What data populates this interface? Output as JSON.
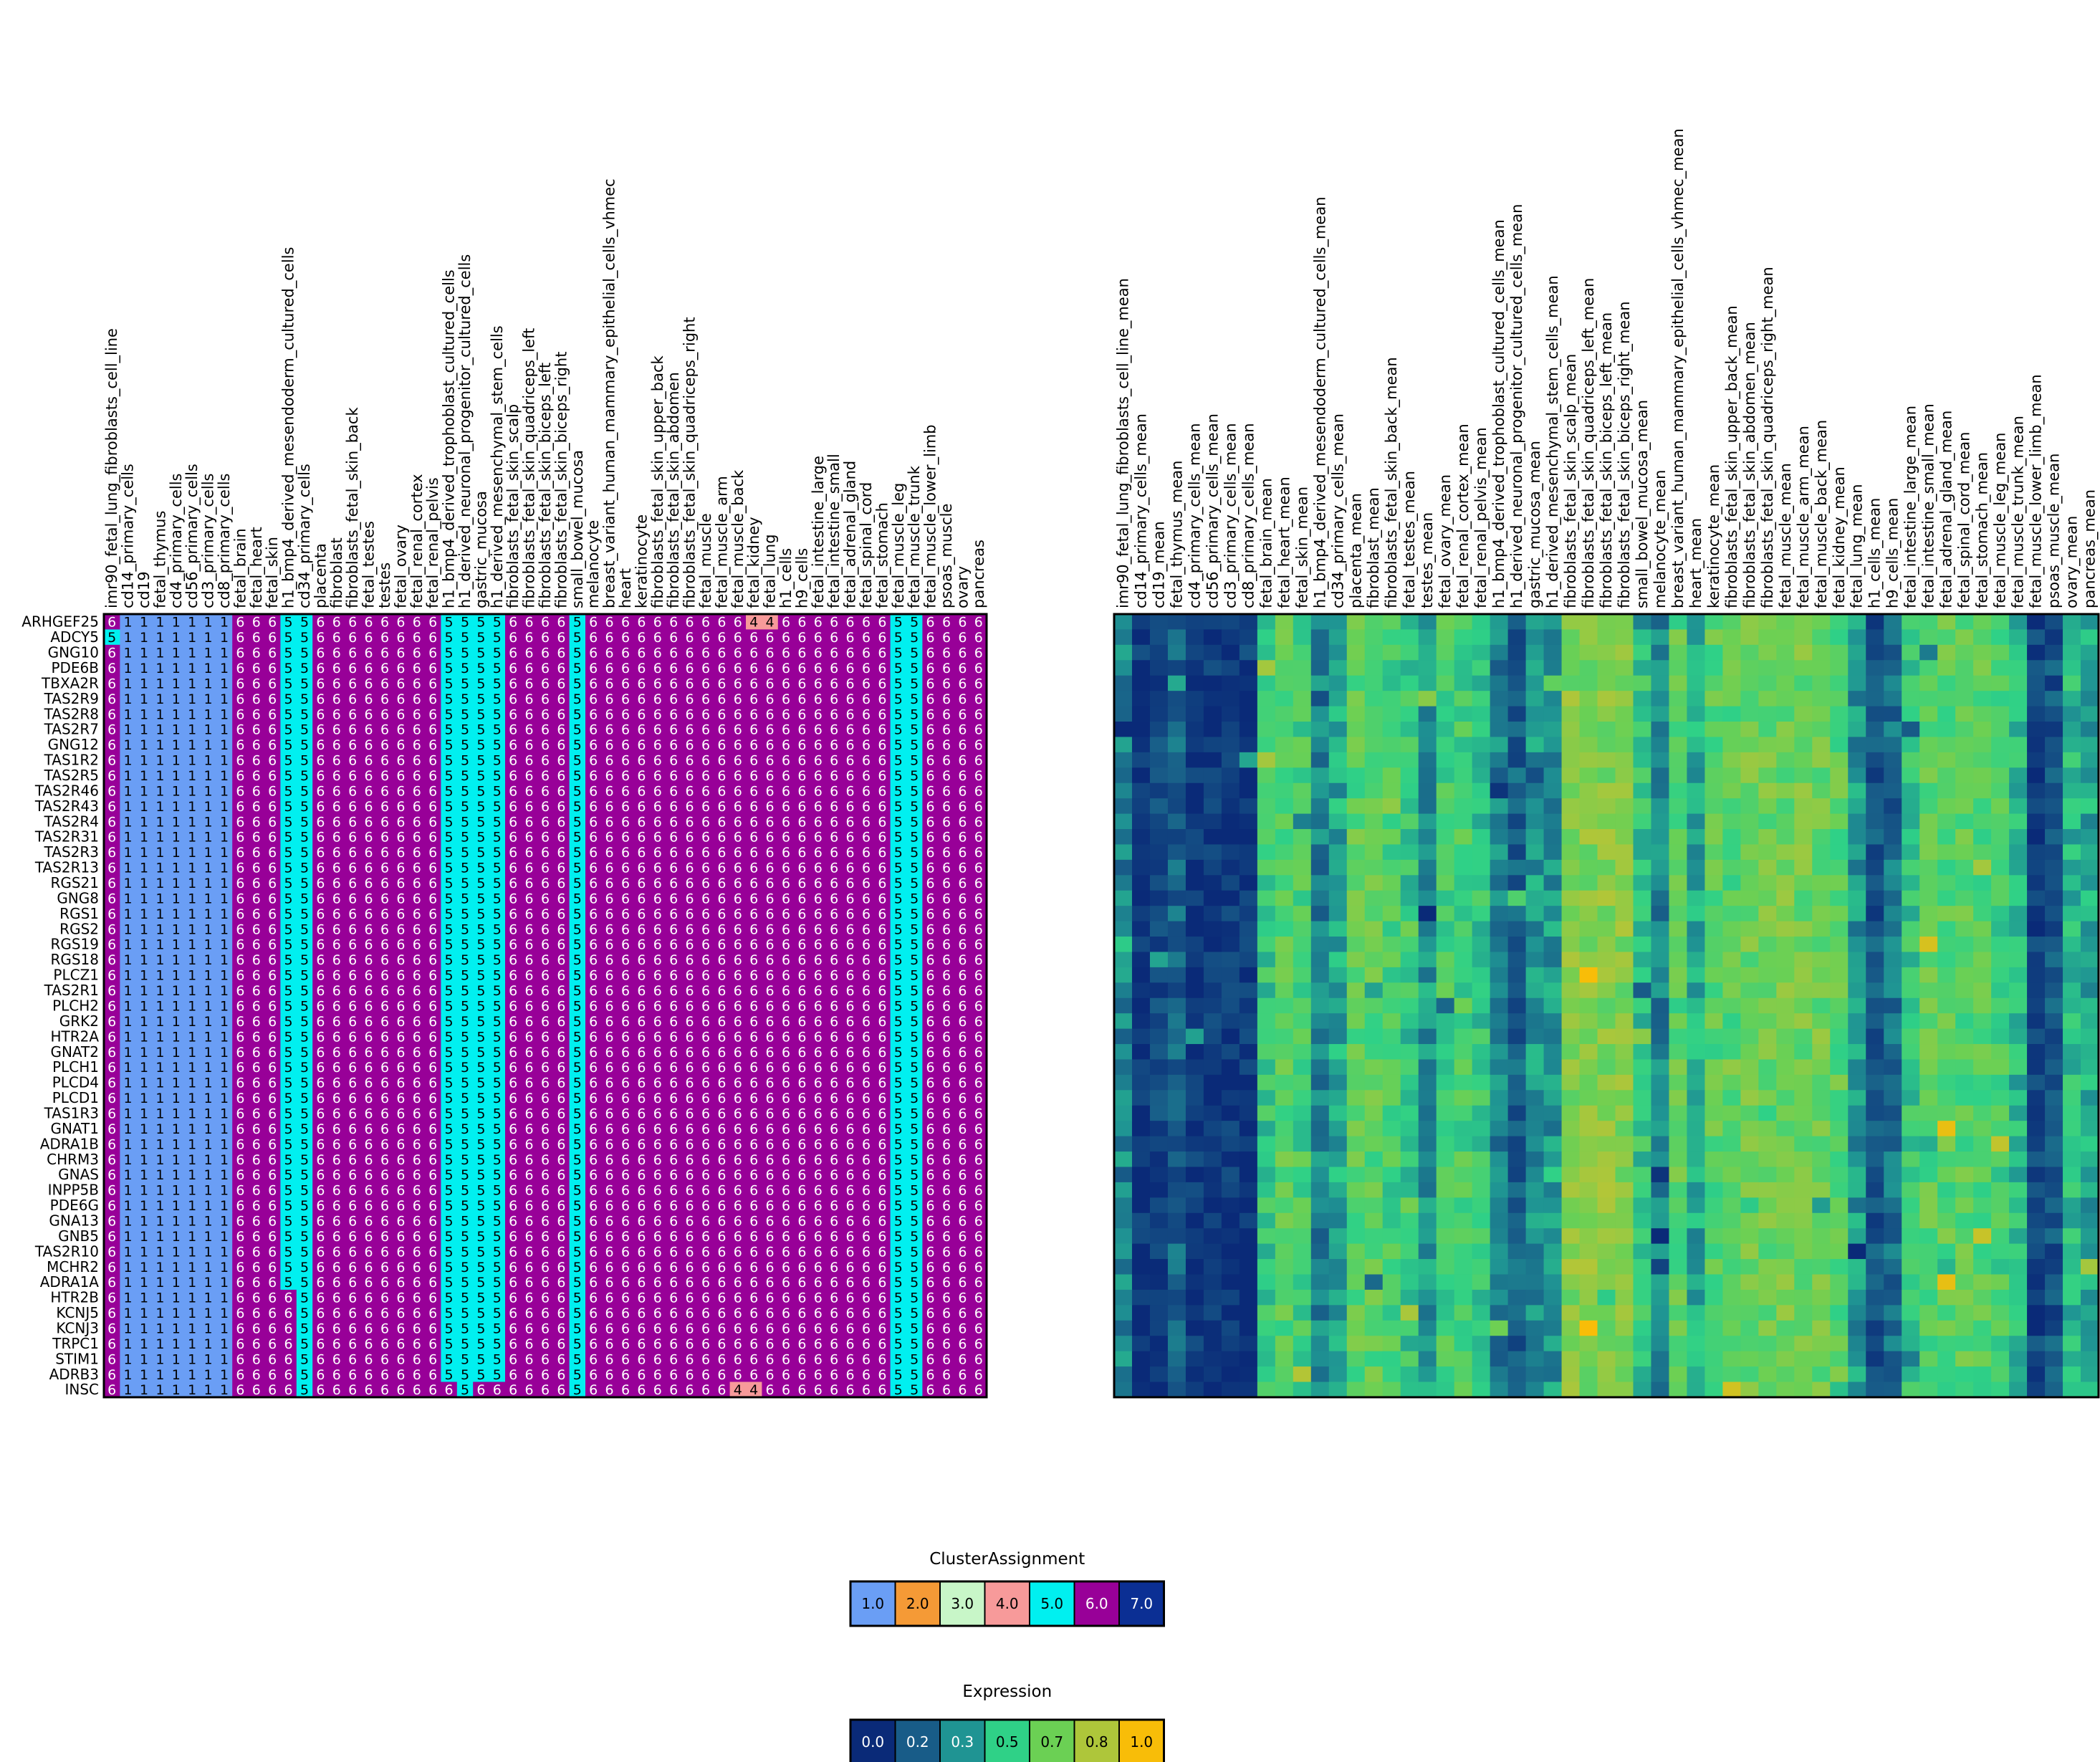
{
  "chart_data": {
    "type": "heatmap",
    "rows": [
      "ARHGEF25",
      "ADCY5",
      "GNG10",
      "PDE6B",
      "TBXA2R",
      "TAS2R9",
      "TAS2R8",
      "TAS2R7",
      "GNG12",
      "TAS1R2",
      "TAS2R5",
      "TAS2R46",
      "TAS2R43",
      "TAS2R4",
      "TAS2R31",
      "TAS2R3",
      "TAS2R13",
      "RGS21",
      "GNG8",
      "RGS1",
      "RGS2",
      "RGS19",
      "RGS18",
      "PLCZ1",
      "TAS2R1",
      "PLCH2",
      "GRK2",
      "HTR2A",
      "GNAT2",
      "PLCH1",
      "PLCD4",
      "PLCD1",
      "TAS1R3",
      "GNAT1",
      "ADRA1B",
      "CHRM3",
      "GNAS",
      "INPP5B",
      "PDE6G",
      "GNA13",
      "GNB5",
      "TAS2R10",
      "MCHR2",
      "ADRA1A",
      "HTR2B",
      "KCNJ5",
      "KCNJ3",
      "TRPC1",
      "STIM1",
      "ADRB3",
      "INSC"
    ],
    "columns_left": [
      "imr90_fetal_lung_fibroblasts_cell_line",
      "cd14_primary_cells",
      "cd19",
      "fetal_thymus",
      "cd4_primary_cells",
      "cd56_primary_cells",
      "cd3_primary_cells",
      "cd8_primary_cells",
      "fetal_brain",
      "fetal_heart",
      "fetal_skin",
      "h1_bmp4_derived_mesendoderm_cultured_cells",
      "cd34_primary_cells",
      "placenta",
      "fibroblast",
      "fibroblasts_fetal_skin_back",
      "fetal_testes",
      "testes",
      "fetal_ovary",
      "fetal_renal_cortex",
      "fetal_renal_pelvis",
      "h1_bmp4_derived_trophoblast_cultured_cells",
      "h1_derived_neuronal_progenitor_cultured_cells",
      "gastric_mucosa",
      "h1_derived_mesenchymal_stem_cells",
      "fibroblasts_fetal_skin_scalp",
      "fibroblasts_fetal_skin_quadriceps_left",
      "fibroblasts_fetal_skin_biceps_left",
      "fibroblasts_fetal_skin_biceps_right",
      "small_bowel_mucosa",
      "melanocyte",
      "breast_variant_human_mammary_epithelial_cells_vhmec",
      "heart",
      "keratinocyte",
      "fibroblasts_fetal_skin_upper_back",
      "fibroblasts_fetal_skin_abdomen",
      "fibroblasts_fetal_skin_quadriceps_right",
      "fetal_muscle",
      "fetal_muscle_arm",
      "fetal_muscle_back",
      "fetal_kidney",
      "fetal_lung",
      "h1_cells",
      "h9_cells",
      "fetal_intestine_large",
      "fetal_intestine_small",
      "fetal_adrenal_gland",
      "fetal_spinal_cord",
      "fetal_stomach",
      "fetal_muscle_leg",
      "fetal_muscle_trunk",
      "fetal_muscle_lower_limb",
      "psoas_muscle",
      "ovary",
      "pancreas"
    ],
    "columns_right": [
      "imr90_fetal_lung_fibroblasts_cell_line_mean",
      "cd14_primary_cells_mean",
      "cd19_mean",
      "fetal_thymus_mean",
      "cd4_primary_cells_mean",
      "cd56_primary_cells_mean",
      "cd3_primary_cells_mean",
      "cd8_primary_cells_mean",
      "fetal_brain_mean",
      "fetal_heart_mean",
      "fetal_skin_mean",
      "h1_bmp4_derived_mesendoderm_cultured_cells_mean",
      "cd34_primary_cells_mean",
      "placenta_mean",
      "fibroblast_mean",
      "fibroblasts_fetal_skin_back_mean",
      "fetal_testes_mean",
      "testes_mean",
      "fetal_ovary_mean",
      "fetal_renal_cortex_mean",
      "fetal_renal_pelvis_mean",
      "h1_bmp4_derived_trophoblast_cultured_cells_mean",
      "h1_derived_neuronal_progenitor_cultured_cells_mean",
      "gastric_mucosa_mean",
      "h1_derived_mesenchymal_stem_cells_mean",
      "fibroblasts_fetal_skin_scalp_mean",
      "fibroblasts_fetal_skin_quadriceps_left_mean",
      "fibroblasts_fetal_skin_biceps_left_mean",
      "fibroblasts_fetal_skin_biceps_right_mean",
      "small_bowel_mucosa_mean",
      "melanocyte_mean",
      "breast_variant_human_mammary_epithelial_cells_vhmec_mean",
      "heart_mean",
      "keratinocyte_mean",
      "fibroblasts_fetal_skin_upper_back_mean",
      "fibroblasts_fetal_skin_abdomen_mean",
      "fibroblasts_fetal_skin_quadriceps_right_mean",
      "fetal_muscle_mean",
      "fetal_muscle_arm_mean",
      "fetal_muscle_back_mean",
      "fetal_kidney_mean",
      "fetal_lung_mean",
      "h1_cells_mean",
      "h9_cells_mean",
      "fetal_intestine_large_mean",
      "fetal_intestine_small_mean",
      "fetal_adrenal_gland_mean",
      "fetal_spinal_cord_mean",
      "fetal_stomach_mean",
      "fetal_muscle_leg_mean",
      "fetal_muscle_trunk_mean",
      "fetal_muscle_lower_limb_mean",
      "psoas_muscle_mean",
      "ovary_mean",
      "pancreas_mean"
    ],
    "cluster_default": [
      6,
      1,
      1,
      1,
      1,
      1,
      1,
      1,
      6,
      6,
      6,
      5,
      5,
      6,
      6,
      6,
      6,
      6,
      6,
      6,
      6,
      5,
      5,
      5,
      5,
      6,
      6,
      6,
      6,
      5,
      6,
      6,
      6,
      6,
      6,
      6,
      6,
      6,
      6,
      6,
      6,
      6,
      6,
      6,
      6,
      6,
      6,
      6,
      6,
      5,
      5,
      6,
      6,
      6,
      6
    ],
    "cluster_exceptions": [
      {
        "row": "ARHGEF25",
        "col": "fetal_kidney",
        "value": 4
      },
      {
        "row": "ARHGEF25",
        "col": "fetal_lung",
        "value": 4
      },
      {
        "row": "ADCY5",
        "col": "imr90_fetal_lung_fibroblasts_cell_line",
        "value": 5
      },
      {
        "row": "HTR2B",
        "col": "h1_bmp4_derived_mesendoderm_cultured_cells",
        "value": 6
      },
      {
        "row": "KCNJ5",
        "col": "h1_bmp4_derived_mesendoderm_cultured_cells",
        "value": 6
      },
      {
        "row": "KCNJ3",
        "col": "h1_bmp4_derived_mesendoderm_cultured_cells",
        "value": 6
      },
      {
        "row": "TRPC1",
        "col": "h1_bmp4_derived_mesendoderm_cultured_cells",
        "value": 6
      },
      {
        "row": "STIM1",
        "col": "h1_bmp4_derived_mesendoderm_cultured_cells",
        "value": 6
      },
      {
        "row": "ADRB3",
        "col": "h1_bmp4_derived_mesendoderm_cultured_cells",
        "value": 6
      },
      {
        "row": "INSC",
        "col": "h1_bmp4_derived_mesendoderm_cultured_cells",
        "value": 6
      },
      {
        "row": "INSC",
        "col": "h1_bmp4_derived_trophoblast_cultured_cells",
        "value": 6
      },
      {
        "row": "INSC",
        "col": "gastric_mucosa",
        "value": 6
      },
      {
        "row": "INSC",
        "col": "h1_derived_mesenchymal_stem_cells",
        "value": 6
      },
      {
        "row": "INSC",
        "col": "fetal_muscle_back",
        "value": 4
      },
      {
        "row": "INSC",
        "col": "fetal_kidney",
        "value": 4
      }
    ],
    "expression_column_base": [
      0.3,
      0.05,
      0.1,
      0.2,
      0.05,
      0.05,
      0.05,
      0.05,
      0.5,
      0.6,
      0.55,
      0.3,
      0.4,
      0.6,
      0.6,
      0.55,
      0.5,
      0.35,
      0.55,
      0.55,
      0.5,
      0.3,
      0.2,
      0.35,
      0.35,
      0.7,
      0.7,
      0.7,
      0.7,
      0.5,
      0.3,
      0.6,
      0.4,
      0.6,
      0.6,
      0.65,
      0.65,
      0.65,
      0.65,
      0.65,
      0.6,
      0.35,
      0.15,
      0.25,
      0.5,
      0.6,
      0.6,
      0.6,
      0.6,
      0.55,
      0.45,
      0.1,
      0.15,
      0.45,
      0.4
    ],
    "legends": [
      {
        "title": "ClusterAssignment",
        "labels": [
          "1.0",
          "2.0",
          "3.0",
          "4.0",
          "5.0",
          "6.0",
          "7.0"
        ],
        "colors": [
          "#6a9ef5",
          "#f59a36",
          "#c8f6c8",
          "#f79a9a",
          "#00f0f0",
          "#980098",
          "#0b2f94"
        ]
      },
      {
        "title": "Expression",
        "labels": [
          "0.0",
          "0.2",
          "0.3",
          "0.5",
          "0.7",
          "0.8",
          "1.0"
        ],
        "colors": [
          "#0a2a78",
          "#185c88",
          "#1f9493",
          "#2fd187",
          "#6bd054",
          "#aec63a",
          "#f8bd08"
        ]
      }
    ]
  }
}
